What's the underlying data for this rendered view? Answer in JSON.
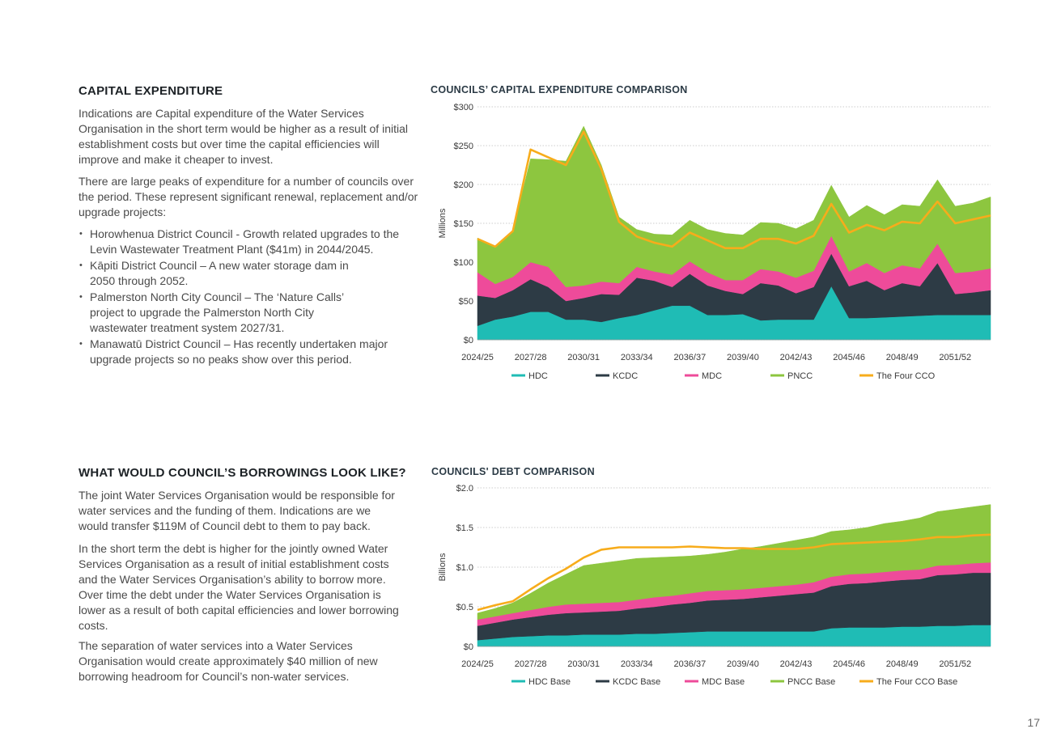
{
  "capex_section": {
    "heading": "CAPITAL EXPENDITURE",
    "para1": "Indications are Capital expenditure of the Water Services Organisation in the short term would be higher as a result of initial establishment costs but over time the capital efficiencies will improve and make it cheaper to invest.",
    "para2": "There are large peaks of expenditure for a number of councils over the period. These represent significant renewal, replacement and/or upgrade projects:",
    "bullets": [
      "Horowhenua District Council - Growth related upgrades to the Levin Wastewater Treatment Plant ($41m) in 2044/2045.",
      "Kāpiti District Council – A new water storage dam in 2050 through 2052.",
      "Palmerston North City Council – The ‘Nature Calls’ project to upgrade the Palmerston North City wastewater treatment system 2027/31.",
      "Manawatū District Council – Has recently undertaken major upgrade projects so no peaks show over this period."
    ]
  },
  "debt_section": {
    "heading": "WHAT WOULD COUNCIL’S BORROWINGS LOOK LIKE?",
    "para1": "The joint Water Services Organisation would be responsible for water services and the funding of them. Indications are we would transfer $119M of Council debt to them to pay back.",
    "para2": "In the short term the debt is higher for the jointly owned Water Services Organisation as a result of initial establishment costs and the Water Services Organisation’s ability to borrow more. Over time the debt under the Water Services Organisation is lower as a result of both capital efficiencies and lower borrowing costs.",
    "para3": "The separation of water services into a Water Services Organisation would create approximately $40 million of new borrowing headroom for Council’s non-water services."
  },
  "page_number": "17",
  "chart_data": [
    {
      "type": "area",
      "title": "COUNCILS’ CAPITAL EXPENDITURE COMPARISON",
      "ylabel": "Millions",
      "ylim": [
        0,
        300
      ],
      "y_ticks": [
        "$0",
        "$50",
        "$100",
        "$150",
        "$200",
        "$250",
        "$300"
      ],
      "y_tick_values": [
        0,
        50,
        100,
        150,
        200,
        250,
        300
      ],
      "x": [
        "2024/25",
        "2025/26",
        "2026/27",
        "2027/28",
        "2028/29",
        "2029/30",
        "2030/31",
        "2031/32",
        "2032/33",
        "2033/34",
        "2034/35",
        "2035/36",
        "2036/37",
        "2037/38",
        "2038/39",
        "2039/40",
        "2040/41",
        "2041/42",
        "2042/43",
        "2043/44",
        "2044/45",
        "2045/46",
        "2046/47",
        "2047/48",
        "2048/49",
        "2049/50",
        "2050/51",
        "2051/52",
        "2052/53",
        "2053/54"
      ],
      "x_tick_labels": [
        "2024/25",
        "2027/28",
        "2030/31",
        "2033/34",
        "2036/37",
        "2039/40",
        "2042/43",
        "2045/46",
        "2048/49",
        "2051/52"
      ],
      "stacked": true,
      "grid": true,
      "legend_position": "bottom",
      "series": [
        {
          "name": "HDC",
          "color": "#1fbcb5",
          "kind": "area",
          "values": [
            18,
            26,
            30,
            36,
            36,
            26,
            26,
            23,
            28,
            32,
            38,
            44,
            44,
            32,
            32,
            33,
            25,
            26,
            26,
            26,
            69,
            28,
            28,
            29,
            30,
            31,
            32,
            32,
            32,
            32
          ]
        },
        {
          "name": "KCDC",
          "color": "#2d3b45",
          "kind": "area",
          "values": [
            39,
            28,
            34,
            42,
            32,
            24,
            28,
            36,
            30,
            48,
            38,
            24,
            41,
            38,
            31,
            26,
            48,
            44,
            34,
            42,
            42,
            41,
            48,
            35,
            43,
            38,
            67,
            27,
            29,
            32
          ]
        },
        {
          "name": "MDC",
          "color": "#ee4b9a",
          "kind": "area",
          "values": [
            30,
            18,
            17,
            22,
            26,
            18,
            16,
            16,
            15,
            14,
            12,
            16,
            16,
            17,
            14,
            18,
            18,
            18,
            20,
            21,
            23,
            19,
            23,
            22,
            23,
            23,
            25,
            27,
            27,
            28
          ]
        },
        {
          "name": "PNCC",
          "color": "#8dc63f",
          "kind": "area",
          "values": [
            44,
            48,
            59,
            133,
            138,
            162,
            205,
            150,
            85,
            48,
            48,
            51,
            53,
            55,
            60,
            58,
            60,
            62,
            63,
            65,
            65,
            70,
            74,
            75,
            78,
            80,
            82,
            86,
            88,
            92
          ]
        },
        {
          "name": "The Four CCO",
          "color": "#f7ac1b",
          "kind": "line",
          "values": [
            130,
            120,
            140,
            245,
            235,
            225,
            268,
            220,
            152,
            133,
            125,
            120,
            138,
            128,
            118,
            118,
            130,
            130,
            124,
            134,
            175,
            138,
            148,
            141,
            152,
            150,
            178,
            150,
            155,
            160
          ]
        }
      ]
    },
    {
      "type": "area",
      "title": "COUNCILS' DEBT COMPARISON",
      "ylabel": "Billions",
      "ylim": [
        0,
        2
      ],
      "y_ticks": [
        "$0",
        "$0.5",
        "$1.0",
        "$1.5",
        "$2.0"
      ],
      "y_tick_values": [
        0,
        0.5,
        1.0,
        1.5,
        2.0
      ],
      "x": [
        "2024/25",
        "2025/26",
        "2026/27",
        "2027/28",
        "2028/29",
        "2029/30",
        "2030/31",
        "2031/32",
        "2032/33",
        "2033/34",
        "2034/35",
        "2035/36",
        "2036/37",
        "2037/38",
        "2038/39",
        "2039/40",
        "2040/41",
        "2041/42",
        "2042/43",
        "2043/44",
        "2044/45",
        "2045/46",
        "2046/47",
        "2047/48",
        "2048/49",
        "2049/50",
        "2050/51",
        "2051/52",
        "2052/53",
        "2053/54"
      ],
      "x_tick_labels": [
        "2024/25",
        "2027/28",
        "2030/31",
        "2033/34",
        "2036/37",
        "2039/40",
        "2042/43",
        "2045/46",
        "2048/49",
        "2051/52"
      ],
      "stacked": true,
      "grid": true,
      "legend_position": "bottom",
      "series": [
        {
          "name": "HDC Base",
          "color": "#1fbcb5",
          "kind": "area",
          "values": [
            0.08,
            0.1,
            0.12,
            0.13,
            0.14,
            0.14,
            0.15,
            0.15,
            0.15,
            0.16,
            0.16,
            0.17,
            0.18,
            0.19,
            0.19,
            0.19,
            0.19,
            0.19,
            0.19,
            0.19,
            0.23,
            0.24,
            0.24,
            0.24,
            0.25,
            0.25,
            0.26,
            0.26,
            0.27,
            0.27
          ]
        },
        {
          "name": "KCDC Base",
          "color": "#2d3b45",
          "kind": "area",
          "values": [
            0.18,
            0.2,
            0.22,
            0.24,
            0.26,
            0.28,
            0.28,
            0.29,
            0.3,
            0.32,
            0.34,
            0.36,
            0.37,
            0.39,
            0.4,
            0.41,
            0.43,
            0.45,
            0.47,
            0.49,
            0.53,
            0.55,
            0.56,
            0.58,
            0.59,
            0.6,
            0.64,
            0.65,
            0.66,
            0.66
          ]
        },
        {
          "name": "MDC Base",
          "color": "#ee4b9a",
          "kind": "area",
          "values": [
            0.08,
            0.08,
            0.08,
            0.09,
            0.1,
            0.11,
            0.11,
            0.11,
            0.11,
            0.11,
            0.12,
            0.11,
            0.12,
            0.12,
            0.12,
            0.12,
            0.12,
            0.12,
            0.12,
            0.13,
            0.12,
            0.12,
            0.12,
            0.12,
            0.12,
            0.12,
            0.12,
            0.12,
            0.12,
            0.13
          ]
        },
        {
          "name": "PNCC Base",
          "color": "#8dc63f",
          "kind": "area",
          "values": [
            0.08,
            0.1,
            0.13,
            0.21,
            0.3,
            0.38,
            0.48,
            0.5,
            0.52,
            0.52,
            0.5,
            0.49,
            0.47,
            0.46,
            0.48,
            0.51,
            0.52,
            0.54,
            0.56,
            0.57,
            0.57,
            0.56,
            0.58,
            0.61,
            0.62,
            0.65,
            0.68,
            0.7,
            0.71,
            0.73
          ]
        },
        {
          "name": "The Four CCO Base",
          "color": "#f7ac1b",
          "kind": "line",
          "values": [
            0.46,
            0.52,
            0.57,
            0.72,
            0.86,
            0.98,
            1.12,
            1.22,
            1.25,
            1.25,
            1.25,
            1.25,
            1.26,
            1.25,
            1.24,
            1.24,
            1.23,
            1.23,
            1.23,
            1.25,
            1.29,
            1.3,
            1.31,
            1.32,
            1.33,
            1.35,
            1.38,
            1.38,
            1.4,
            1.41
          ]
        }
      ]
    }
  ]
}
